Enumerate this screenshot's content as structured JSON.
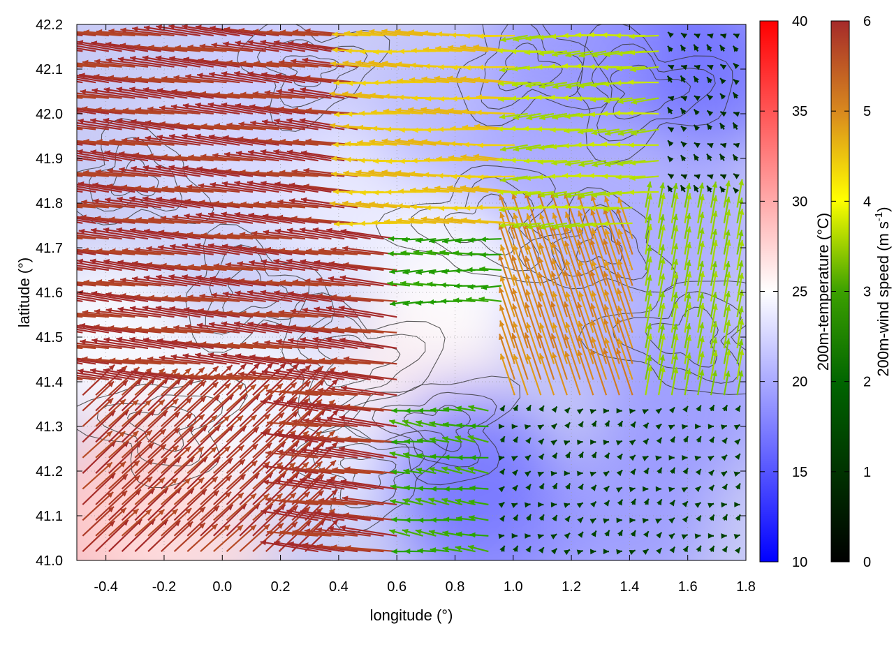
{
  "chart_data": {
    "type": "vector-field",
    "xlabel": "longitude (°)",
    "ylabel": "latitude (°)",
    "xlim": [
      -0.5,
      1.8
    ],
    "ylim": [
      41.0,
      42.2
    ],
    "xticks": [
      "-0.4",
      "-0.2",
      "0.0",
      "0.2",
      "0.4",
      "0.6",
      "0.8",
      "1.0",
      "1.2",
      "1.4",
      "1.6",
      "1.8"
    ],
    "yticks": [
      "41.0",
      "41.1",
      "41.2",
      "41.3",
      "41.4",
      "41.5",
      "41.6",
      "41.7",
      "41.8",
      "41.9",
      "42.0",
      "42.1",
      "42.2"
    ],
    "grid": true,
    "temperature_colorbar": {
      "label": "200m-temperature (°C)",
      "range": [
        10,
        40
      ],
      "ticks": [
        "10",
        "15",
        "20",
        "25",
        "30",
        "35",
        "40"
      ],
      "colors": [
        "#0000ff",
        "#ffffff",
        "#ff0000"
      ]
    },
    "wind_colorbar": {
      "label_main": "200m-wind speed (m s",
      "label_sup": "-1",
      "label_close": ")",
      "range": [
        0,
        6
      ],
      "ticks": [
        "0",
        "1",
        "2",
        "3",
        "4",
        "5",
        "6"
      ],
      "colors": [
        "#000000",
        "#006400",
        "#22a000",
        "#ffff00",
        "#d98a1e",
        "#a52a2a"
      ]
    },
    "temperature_field": [
      {
        "lon": -0.45,
        "lat": 41.05,
        "t": 29
      },
      {
        "lon": -0.3,
        "lat": 41.15,
        "t": 28
      },
      {
        "lon": -0.1,
        "lat": 41.05,
        "t": 27
      },
      {
        "lon": -0.4,
        "lat": 41.5,
        "t": 25
      },
      {
        "lon": 0.1,
        "lat": 41.35,
        "t": 25
      },
      {
        "lon": 0.4,
        "lat": 41.3,
        "t": 24
      },
      {
        "lon": 0.7,
        "lat": 41.45,
        "t": 26
      },
      {
        "lon": 0.8,
        "lat": 41.65,
        "t": 25
      },
      {
        "lon": 0.4,
        "lat": 41.8,
        "t": 24
      },
      {
        "lon": 0.0,
        "lat": 41.9,
        "t": 23
      },
      {
        "lon": 0.2,
        "lat": 42.1,
        "t": 22
      },
      {
        "lon": 0.8,
        "lat": 42.0,
        "t": 21
      },
      {
        "lon": 1.1,
        "lat": 41.9,
        "t": 20
      },
      {
        "lon": 1.3,
        "lat": 41.55,
        "t": 21
      },
      {
        "lon": 1.55,
        "lat": 41.75,
        "t": 20
      },
      {
        "lon": 1.5,
        "lat": 42.15,
        "t": 16
      },
      {
        "lon": 1.7,
        "lat": 42.1,
        "t": 17
      },
      {
        "lon": 1.2,
        "lat": 42.15,
        "t": 19
      },
      {
        "lon": 0.95,
        "lat": 41.05,
        "t": 18
      },
      {
        "lon": 1.4,
        "lat": 41.1,
        "t": 19
      },
      {
        "lon": 1.6,
        "lat": 41.35,
        "t": 19
      },
      {
        "lon": 0.85,
        "lat": 41.2,
        "t": 17
      }
    ],
    "wind_regions": [
      {
        "lon": [
          -0.5,
          0.6
        ],
        "lat": [
          41.0,
          42.2
        ],
        "u": -5.6,
        "v": 0.7,
        "speed": 5.9,
        "note_color": "brown"
      },
      {
        "lon": [
          -0.5,
          0.3
        ],
        "lat": [
          41.0,
          41.4
        ],
        "u": 3.2,
        "v": 3.0,
        "speed": 5.8,
        "note_color": "brown"
      },
      {
        "lon": [
          0.6,
          1.05
        ],
        "lat": [
          41.55,
          41.75
        ],
        "u": -2.2,
        "v": 0.0,
        "speed": 2.4,
        "note_color": "green"
      },
      {
        "lon": [
          0.5,
          1.1
        ],
        "lat": [
          41.75,
          42.2
        ],
        "u": -4.0,
        "v": 0.2,
        "speed": 4.2,
        "note_color": "yellow"
      },
      {
        "lon": [
          1.05,
          1.5
        ],
        "lat": [
          41.75,
          42.2
        ],
        "u": -3.0,
        "v": -0.2,
        "speed": 3.2,
        "note_color": "green"
      },
      {
        "lon": [
          1.0,
          1.5
        ],
        "lat": [
          41.35,
          41.75
        ],
        "u": -1.5,
        "v": 4.5,
        "speed": 4.8,
        "note_color": "orange"
      },
      {
        "lon": [
          1.45,
          1.8
        ],
        "lat": [
          41.35,
          41.8
        ],
        "u": 0.5,
        "v": 2.8,
        "speed": 3.0,
        "note_color": "green"
      },
      {
        "lon": [
          1.5,
          1.8
        ],
        "lat": [
          41.8,
          42.2
        ],
        "u": -0.4,
        "v": 0.4,
        "speed": 0.6,
        "note_color": "dark"
      },
      {
        "lon": [
          0.9,
          1.8
        ],
        "lat": [
          41.0,
          41.35
        ],
        "u": 0.3,
        "v": 0.3,
        "speed": 0.8,
        "note_color": "dark"
      },
      {
        "lon": [
          0.6,
          0.95
        ],
        "lat": [
          41.0,
          41.35
        ],
        "u": -2.0,
        "v": 0.3,
        "speed": 2.5,
        "note_color": "green"
      }
    ],
    "contour_centers": [
      {
        "lon": -0.3,
        "lat": 41.85
      },
      {
        "lon": 0.1,
        "lat": 41.6
      },
      {
        "lon": 0.45,
        "lat": 41.45
      },
      {
        "lon": 0.5,
        "lat": 41.2
      },
      {
        "lon": 0.75,
        "lat": 41.3
      },
      {
        "lon": 0.9,
        "lat": 41.75
      },
      {
        "lon": 1.3,
        "lat": 41.7
      },
      {
        "lon": 1.05,
        "lat": 42.1
      },
      {
        "lon": 1.45,
        "lat": 42.05
      },
      {
        "lon": 0.3,
        "lat": 42.1
      },
      {
        "lon": -0.2,
        "lat": 41.3
      },
      {
        "lon": 1.6,
        "lat": 41.5
      }
    ]
  }
}
